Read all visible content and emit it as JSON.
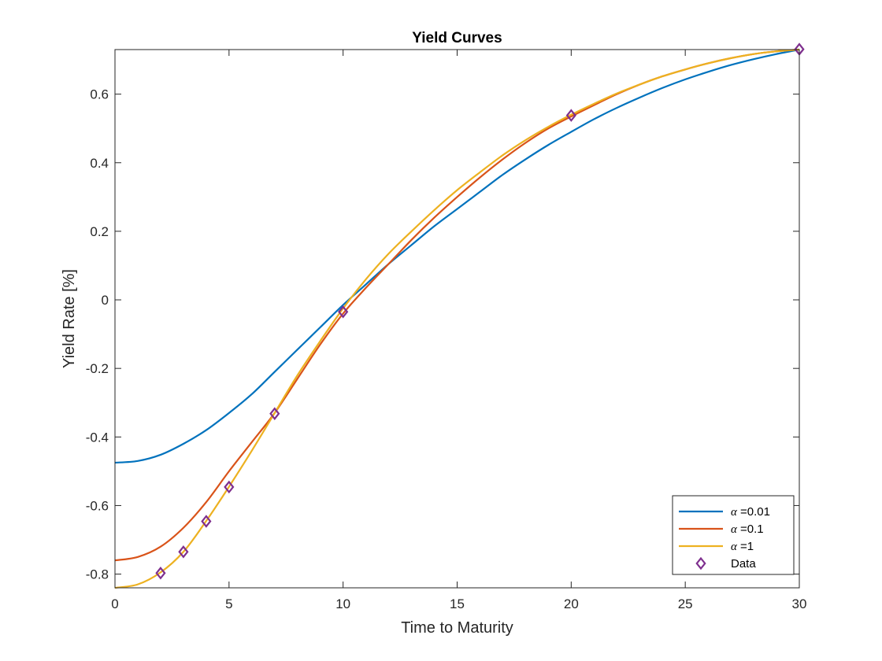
{
  "chart_data": {
    "type": "line",
    "title": "Yield Curves",
    "xlabel": "Time to Maturity",
    "ylabel": "Yield Rate [%]",
    "xlim": [
      0,
      30
    ],
    "ylim": [
      -0.84,
      0.73
    ],
    "xticks": [
      0,
      5,
      10,
      15,
      20,
      25,
      30
    ],
    "xtick_labels": [
      "0",
      "5",
      "10",
      "15",
      "20",
      "25",
      "30"
    ],
    "yticks": [
      -0.8,
      -0.6,
      -0.4,
      -0.2,
      0,
      0.2,
      0.4,
      0.6
    ],
    "ytick_labels": [
      "-0.8",
      "-0.6",
      "-0.4",
      "-0.2",
      "0",
      "0.2",
      "0.4",
      "0.6"
    ],
    "grid": false,
    "legend_position": "bottom-right",
    "series": [
      {
        "name": "=0.01",
        "symbol": "α",
        "color": "#0072BD",
        "x": [
          0,
          1,
          2,
          3,
          4,
          5,
          6,
          7,
          8,
          9,
          10,
          11,
          12,
          13,
          14,
          15,
          16,
          17,
          18,
          19,
          20,
          21,
          22,
          23,
          24,
          25,
          26,
          27,
          28,
          29,
          30
        ],
        "y": [
          -0.475,
          -0.47,
          -0.452,
          -0.42,
          -0.38,
          -0.33,
          -0.275,
          -0.21,
          -0.145,
          -0.08,
          -0.015,
          0.045,
          0.105,
          0.16,
          0.215,
          0.265,
          0.315,
          0.365,
          0.41,
          0.452,
          0.49,
          0.527,
          0.56,
          0.59,
          0.618,
          0.643,
          0.665,
          0.685,
          0.702,
          0.717,
          0.73
        ]
      },
      {
        "name": "=0.1",
        "symbol": "α",
        "color": "#D95319",
        "x": [
          0,
          1,
          2,
          3,
          4,
          5,
          6,
          7,
          8,
          9,
          10,
          11,
          12,
          13,
          14,
          15,
          16,
          17,
          18,
          19,
          20,
          21,
          22,
          23,
          24,
          25,
          26,
          27,
          28,
          29,
          30
        ],
        "y": [
          -0.76,
          -0.75,
          -0.72,
          -0.665,
          -0.59,
          -0.5,
          -0.415,
          -0.33,
          -0.23,
          -0.13,
          -0.04,
          0.035,
          0.105,
          0.175,
          0.24,
          0.3,
          0.357,
          0.41,
          0.458,
          0.5,
          0.535,
          0.568,
          0.6,
          0.628,
          0.652,
          0.672,
          0.69,
          0.705,
          0.717,
          0.725,
          0.73
        ]
      },
      {
        "name": "=1",
        "symbol": "α",
        "color": "#EDB120",
        "x": [
          0,
          1,
          2,
          3,
          4,
          5,
          6,
          7,
          8,
          9,
          10,
          11,
          12,
          13,
          14,
          15,
          16,
          17,
          18,
          19,
          20,
          21,
          22,
          23,
          24,
          25,
          26,
          27,
          28,
          29,
          30
        ],
        "y": [
          -0.84,
          -0.83,
          -0.795,
          -0.735,
          -0.645,
          -0.545,
          -0.44,
          -0.33,
          -0.22,
          -0.12,
          -0.025,
          0.06,
          0.135,
          0.2,
          0.262,
          0.32,
          0.372,
          0.422,
          0.466,
          0.505,
          0.54,
          0.572,
          0.602,
          0.628,
          0.652,
          0.672,
          0.69,
          0.705,
          0.717,
          0.725,
          0.73
        ]
      }
    ],
    "data_points": {
      "name": "Data",
      "color": "#7E2F8E",
      "marker": "diamond",
      "x": [
        2,
        3,
        4,
        5,
        7,
        10,
        20,
        30
      ],
      "y": [
        -0.797,
        -0.735,
        -0.646,
        -0.546,
        -0.332,
        -0.035,
        0.538,
        0.731
      ]
    }
  }
}
